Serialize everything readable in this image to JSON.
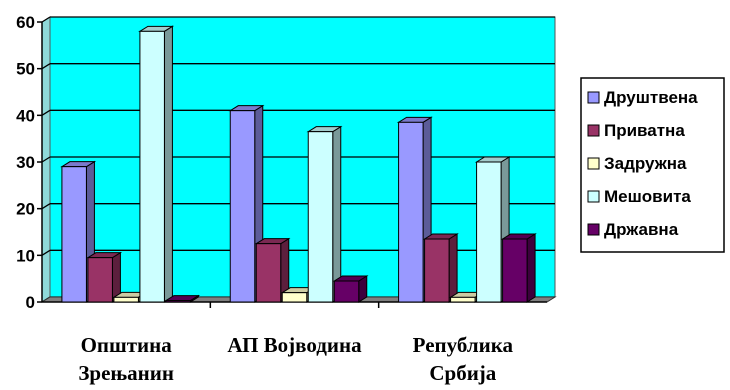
{
  "chart_data": {
    "type": "bar",
    "categories": [
      [
        "Општина",
        "Зрењанин"
      ],
      [
        "АП Војводина"
      ],
      [
        "Република",
        "Србија"
      ]
    ],
    "series": [
      {
        "name": "Друштвена",
        "color": "#9999ff",
        "values": [
          29,
          41,
          38.5
        ]
      },
      {
        "name": "Приватна",
        "color": "#993366",
        "values": [
          9.5,
          12.5,
          13.5
        ]
      },
      {
        "name": "Задружна",
        "color": "#ffffcc",
        "values": [
          1,
          2,
          1
        ]
      },
      {
        "name": "Мешовита",
        "color": "#ccffff",
        "values": [
          58,
          36.5,
          30
        ]
      },
      {
        "name": "Државна",
        "color": "#660066",
        "values": [
          0.3,
          4.5,
          13.5
        ]
      }
    ],
    "ylim": [
      0,
      60
    ],
    "yticks": [
      0,
      10,
      20,
      30,
      40,
      50,
      60
    ],
    "grid": true,
    "plot_background": "#00ffff",
    "legend_position": "right",
    "title": "",
    "xlabel": "",
    "ylabel": ""
  }
}
